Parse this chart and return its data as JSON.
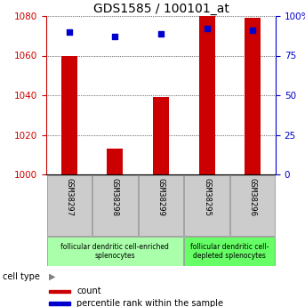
{
  "title": "GDS1585 / 100101_at",
  "samples": [
    "GSM38297",
    "GSM38298",
    "GSM38299",
    "GSM38295",
    "GSM38296"
  ],
  "counts": [
    1060,
    1013,
    1039,
    1080,
    1079
  ],
  "percentiles": [
    90,
    87,
    89,
    92,
    91
  ],
  "ymin": 1000,
  "ymax": 1080,
  "yticks_left": [
    1000,
    1020,
    1040,
    1060,
    1080
  ],
  "yticks_right": [
    0,
    25,
    50,
    75,
    100
  ],
  "bar_color": "#cc0000",
  "dot_color": "#0000cc",
  "bar_width": 0.35,
  "group0_indices": [
    0,
    1,
    2
  ],
  "group0_label": "follicular dendritic cell-enriched\nsplenocytes",
  "group0_color": "#aaffaa",
  "group1_indices": [
    3,
    4
  ],
  "group1_label": "follicular dendritic cell-\ndepleted splenocytes",
  "group1_color": "#66ff66",
  "cell_type_label": "cell type",
  "legend_count_label": "count",
  "legend_pct_label": "percentile rank within the sample",
  "left_axis_color": "#cc0000",
  "right_axis_color": "#0000cc",
  "title_fontsize": 10,
  "tick_fontsize": 7.5,
  "sample_fontsize": 6.5,
  "group_fontsize": 5.5,
  "legend_fontsize": 7
}
